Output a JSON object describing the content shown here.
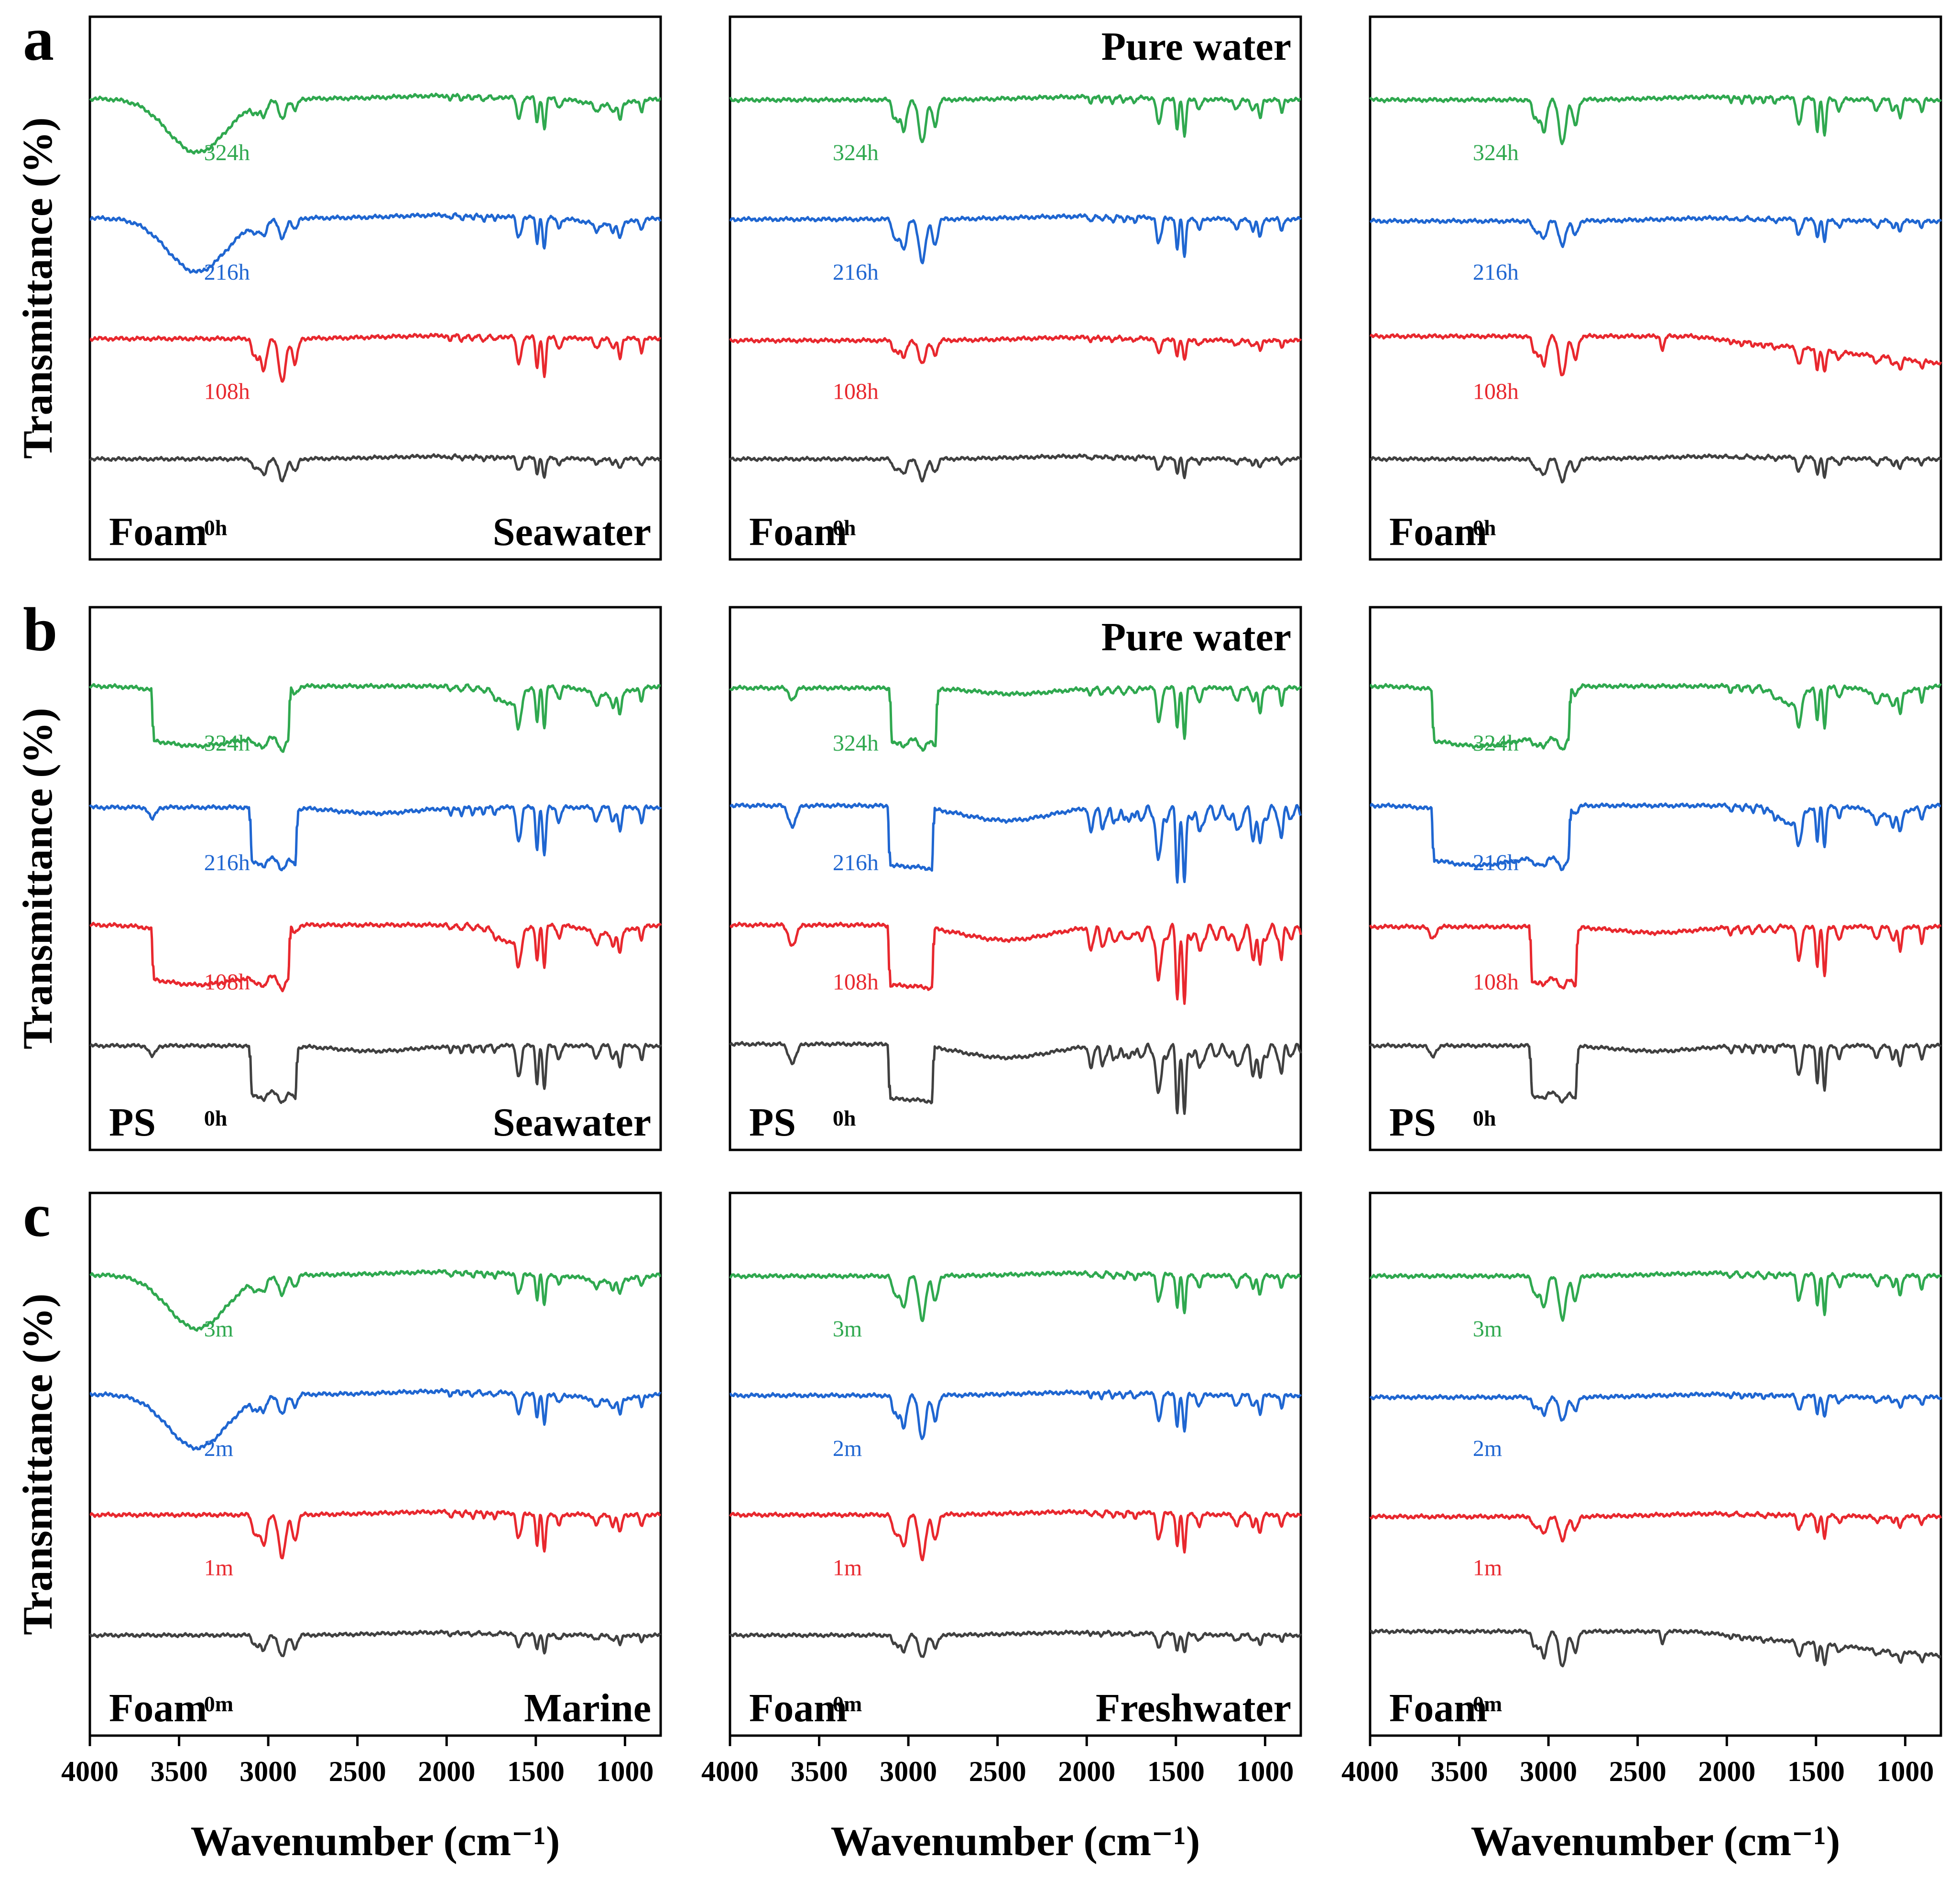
{
  "colors": {
    "gray": "#404040",
    "red": "#e8282e",
    "blue": "#1f66d1",
    "green": "#2fa84f",
    "frame": "#000000"
  },
  "chart_data": {
    "type": "line",
    "title": "",
    "xlabel": "Wavenumber (cm⁻¹)",
    "ylabel": "Transmittance (%)",
    "xlim": [
      4000,
      800
    ],
    "xticks": [
      4000,
      3500,
      3000,
      2500,
      2000,
      1500,
      1000
    ],
    "rows": [
      {
        "label": "a",
        "panels": [
          {
            "material": "Foam",
            "environment": "Seawater",
            "env_pos": "bottom",
            "series": [
              {
                "name": "324h",
                "color": "green",
                "cls": "oh"
              },
              {
                "name": "216h",
                "color": "blue",
                "cls": "oh"
              },
              {
                "name": "108h",
                "color": "red",
                "cls": "sharp"
              },
              {
                "name": "0h",
                "color": "gray",
                "cls": "base"
              }
            ]
          },
          {
            "material": "Foam",
            "environment": "Pure water",
            "env_pos": "top",
            "series": [
              {
                "name": "324h",
                "color": "green",
                "cls": "sharp"
              },
              {
                "name": "216h",
                "color": "blue",
                "cls": "sharp"
              },
              {
                "name": "108h",
                "color": "red",
                "cls": "base"
              },
              {
                "name": "0h",
                "color": "gray",
                "cls": "base"
              }
            ]
          },
          {
            "material": "Foam",
            "environment": "",
            "env_pos": "none",
            "series": [
              {
                "name": "324h",
                "color": "green",
                "cls": "sharp"
              },
              {
                "name": "216h",
                "color": "blue",
                "cls": "base"
              },
              {
                "name": "108h",
                "color": "red",
                "cls": "slope"
              },
              {
                "name": "0h",
                "color": "gray",
                "cls": "base"
              }
            ]
          }
        ]
      },
      {
        "label": "b",
        "panels": [
          {
            "material": "PS",
            "environment": "Seawater",
            "env_pos": "bottom",
            "series": [
              {
                "name": "324h",
                "color": "green",
                "cls": "broad"
              },
              {
                "name": "216h",
                "color": "blue",
                "cls": "ps"
              },
              {
                "name": "108h",
                "color": "red",
                "cls": "broad"
              },
              {
                "name": "0h",
                "color": "gray",
                "cls": "ps"
              }
            ]
          },
          {
            "material": "PS",
            "environment": "Pure water",
            "env_pos": "top",
            "series": [
              {
                "name": "324h",
                "color": "green",
                "cls": "ps"
              },
              {
                "name": "216h",
                "color": "blue",
                "cls": "psstrong"
              },
              {
                "name": "108h",
                "color": "red",
                "cls": "psstrong"
              },
              {
                "name": "0h",
                "color": "gray",
                "cls": "psstrong"
              }
            ]
          },
          {
            "material": "PS",
            "environment": "",
            "env_pos": "none",
            "series": [
              {
                "name": "324h",
                "color": "green",
                "cls": "broad"
              },
              {
                "name": "216h",
                "color": "blue",
                "cls": "broad"
              },
              {
                "name": "108h",
                "color": "red",
                "cls": "ps"
              },
              {
                "name": "0h",
                "color": "gray",
                "cls": "ps"
              }
            ]
          }
        ]
      },
      {
        "label": "c",
        "panels": [
          {
            "material": "Foam",
            "environment": "Marine",
            "env_pos": "bottom",
            "series": [
              {
                "name": "3m",
                "color": "green",
                "cls": "oh"
              },
              {
                "name": "2m",
                "color": "blue",
                "cls": "oh"
              },
              {
                "name": "1m",
                "color": "red",
                "cls": "sharp"
              },
              {
                "name": "0m",
                "color": "gray",
                "cls": "base"
              }
            ]
          },
          {
            "material": "Foam",
            "environment": "Freshwater",
            "env_pos": "bottom",
            "series": [
              {
                "name": "3m",
                "color": "green",
                "cls": "sharp"
              },
              {
                "name": "2m",
                "color": "blue",
                "cls": "sharp"
              },
              {
                "name": "1m",
                "color": "red",
                "cls": "sharp"
              },
              {
                "name": "0m",
                "color": "gray",
                "cls": "base"
              }
            ]
          },
          {
            "material": "Foam",
            "environment": "",
            "env_pos": "none",
            "series": [
              {
                "name": "3m",
                "color": "green",
                "cls": "sharp"
              },
              {
                "name": "2m",
                "color": "blue",
                "cls": "base"
              },
              {
                "name": "1m",
                "color": "red",
                "cls": "base"
              },
              {
                "name": "0m",
                "color": "gray",
                "cls": "slope"
              }
            ]
          }
        ]
      }
    ]
  }
}
